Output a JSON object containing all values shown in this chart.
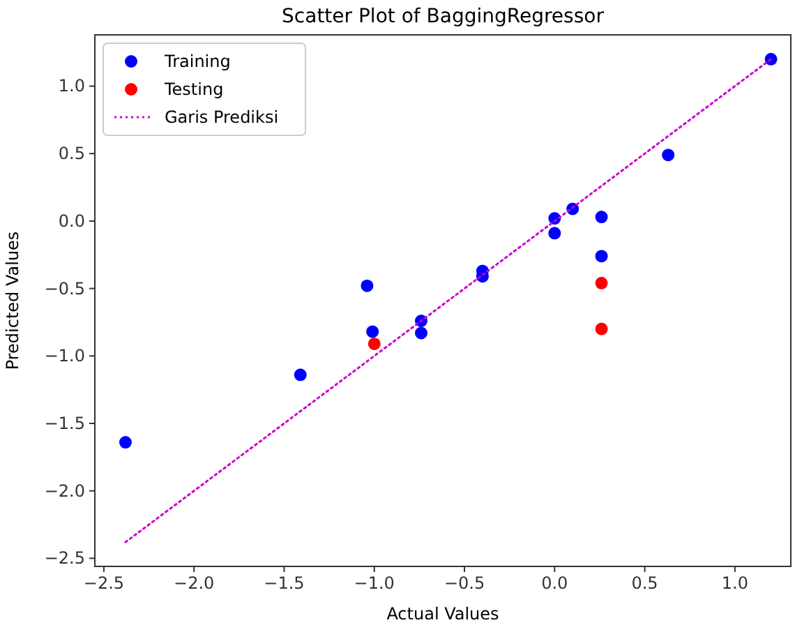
{
  "chart_data": {
    "type": "scatter",
    "title": "Scatter Plot of BaggingRegressor",
    "xlabel": "Actual Values",
    "ylabel": "Predicted Values",
    "xlim": [
      -2.55,
      1.31
    ],
    "ylim": [
      -2.56,
      1.38
    ],
    "xticks": [
      {
        "value": -2.5,
        "label": "−2.5"
      },
      {
        "value": -2,
        "label": "−2.0"
      },
      {
        "value": -1.5,
        "label": "−1.5"
      },
      {
        "value": -1,
        "label": "−1.0"
      },
      {
        "value": -0.5,
        "label": "−0.5"
      },
      {
        "value": 0,
        "label": "0.0"
      },
      {
        "value": 0.5,
        "label": "0.5"
      },
      {
        "value": 1,
        "label": "1.0"
      }
    ],
    "yticks": [
      {
        "value": -2.5,
        "label": "−2.5"
      },
      {
        "value": -2,
        "label": "−2.0"
      },
      {
        "value": -1.5,
        "label": "−1.5"
      },
      {
        "value": -1,
        "label": "−1.0"
      },
      {
        "value": -0.5,
        "label": "−0.5"
      },
      {
        "value": 0,
        "label": "0.0"
      },
      {
        "value": 0.5,
        "label": "0.5"
      },
      {
        "value": 1,
        "label": "1.0"
      }
    ],
    "legend": "top left",
    "grid": false,
    "series": [
      {
        "name": "Training",
        "marker": "circle",
        "color": "#0000ff",
        "x": [
          -2.38,
          -1.41,
          -1.04,
          -1.01,
          -0.74,
          -0.74,
          -0.4,
          -0.4,
          0,
          0,
          0.1,
          0.26,
          0.26,
          0.63,
          1.2
        ],
        "values": [
          -1.64,
          -1.14,
          -0.48,
          -0.82,
          -0.74,
          -0.83,
          -0.37,
          -0.41,
          0.02,
          -0.09,
          0.09,
          0.03,
          -0.26,
          0.49,
          1.2
        ]
      },
      {
        "name": "Testing",
        "marker": "circle",
        "color": "#ff0000",
        "x": [
          -1,
          0.26,
          0.26
        ],
        "values": [
          -0.91,
          -0.46,
          -0.8
        ]
      },
      {
        "name": "Garis Prediksi",
        "type": "line",
        "color": "#cc00cc",
        "line_style": "dotted",
        "marker": "none",
        "x": [
          -2.38,
          1.2
        ],
        "values": [
          -2.38,
          1.2
        ]
      }
    ]
  }
}
